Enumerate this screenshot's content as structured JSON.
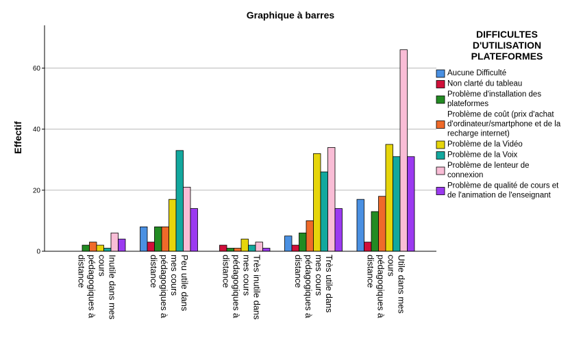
{
  "chart_data": {
    "type": "bar",
    "title": "Graphique à barres",
    "ylabel": "Effectif",
    "xlabel": "",
    "ylim": [
      0,
      74
    ],
    "yticks": [
      0,
      20,
      40,
      60
    ],
    "grid": true,
    "legend_position": "right",
    "legend_title": "DIFFICULTES\nD'UTILISATION\nPLATEFORMES",
    "categories": [
      "Inutile dans mes\ncours\npédagogiques à\ndistance",
      "Peu utile dans\nmes cours\npédagogiques à\ndistance",
      "Très inutile dans\nmes cours\npédagogiques à\ndistance",
      "Très utile dans\nmes cours\npédagogiques à\ndistance",
      "Utile dans mes\ncours\npédagogiques à\ndistance"
    ],
    "series": [
      {
        "name": "Aucune Difficulté",
        "color": "#4a90e2",
        "values": [
          0,
          8,
          0,
          5,
          17
        ]
      },
      {
        "name": "Non clarté du tableau",
        "color": "#d0103a",
        "values": [
          0,
          3,
          2,
          2,
          3
        ]
      },
      {
        "name": "Problème d'installation des\nplateformes",
        "color": "#238b23",
        "values": [
          2,
          8,
          1,
          6,
          13
        ]
      },
      {
        "name": "Problème de coût (prix d'achat\nd'ordinateur/smartphone et de la\nrecharge internet)",
        "color": "#ef6a2a",
        "values": [
          3,
          8,
          1,
          10,
          18
        ]
      },
      {
        "name": "Problème de la Vidéo",
        "color": "#e6d50b",
        "values": [
          2,
          17,
          4,
          32,
          35
        ]
      },
      {
        "name": "Problème de la Voix",
        "color": "#13a89e",
        "values": [
          1,
          33,
          2,
          26,
          31
        ]
      },
      {
        "name": "Problème de lenteur de\nconnexion",
        "color": "#f9bdd6",
        "values": [
          6,
          21,
          3,
          34,
          66
        ]
      },
      {
        "name": "Problème de qualité de cours et\nde l'animation de l'enseignant",
        "color": "#9b3af0",
        "values": [
          4,
          14,
          1,
          14,
          31
        ]
      }
    ]
  }
}
